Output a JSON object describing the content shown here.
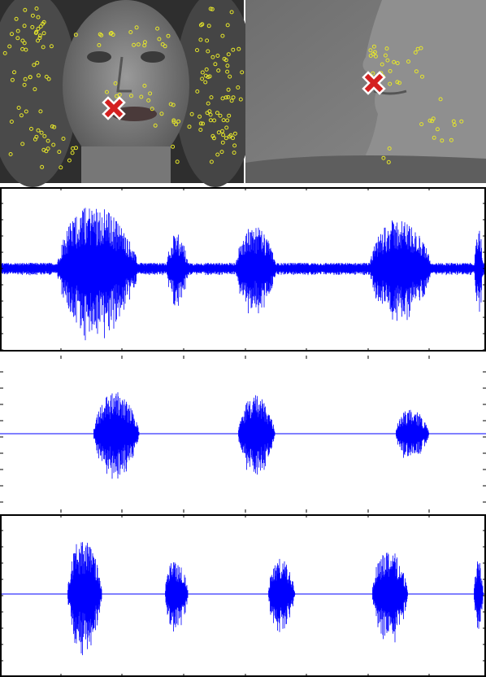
{
  "style": {
    "waveform_color": "#0000ff",
    "keypoint_color": "#e6e62a",
    "marker_color": "#d42020"
  }
}
